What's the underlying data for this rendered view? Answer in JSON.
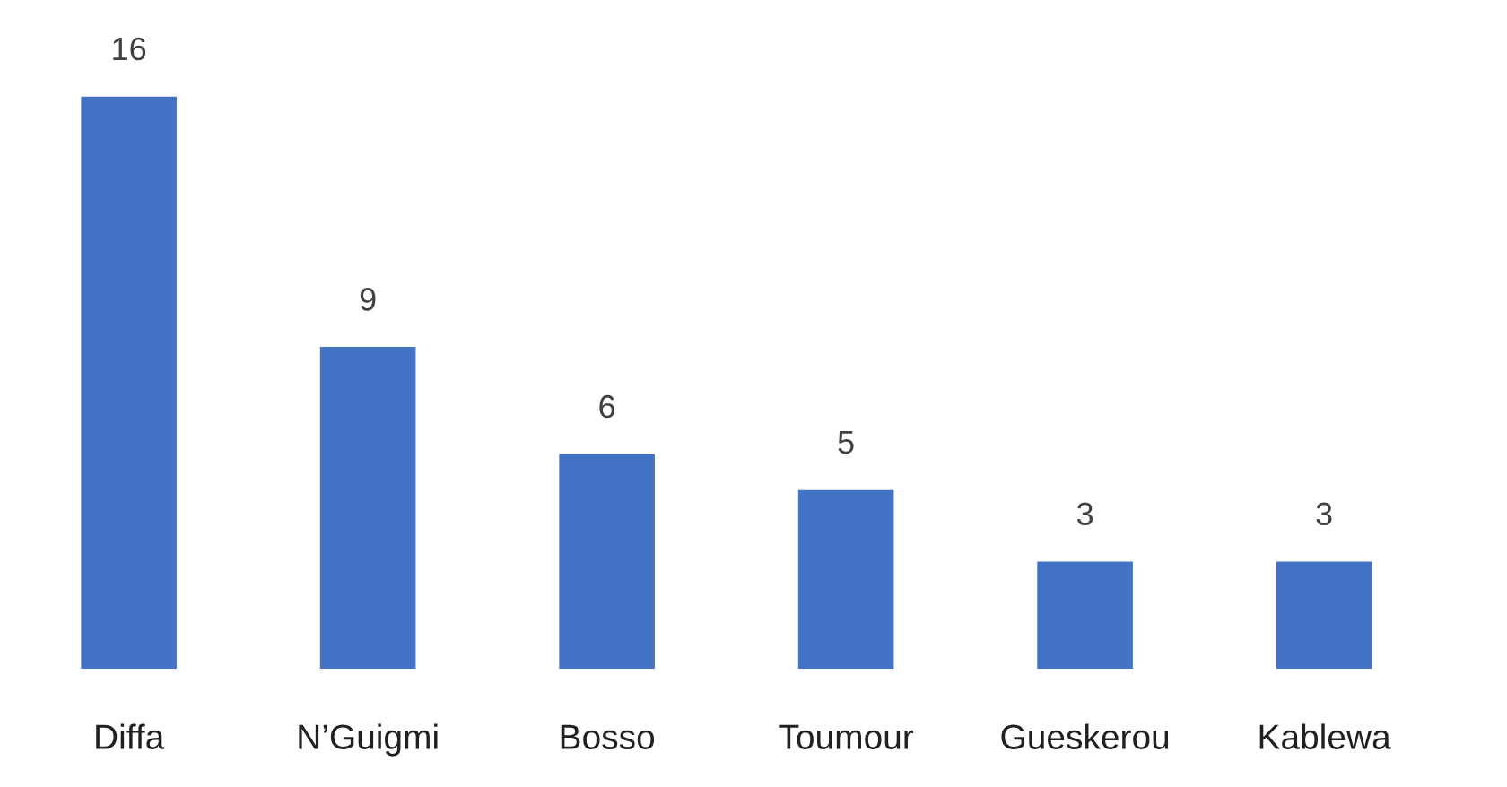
{
  "chart_data": {
    "type": "bar",
    "categories": [
      "Diffa",
      "N’Guigmi",
      "Bosso",
      "Toumour",
      "Gueskerou",
      "Kablewa"
    ],
    "values": [
      16,
      9,
      6,
      5,
      3,
      3
    ],
    "color": "#4472c4",
    "data_labels": true,
    "tick_labels": "x",
    "grid": false,
    "legend": false
  }
}
